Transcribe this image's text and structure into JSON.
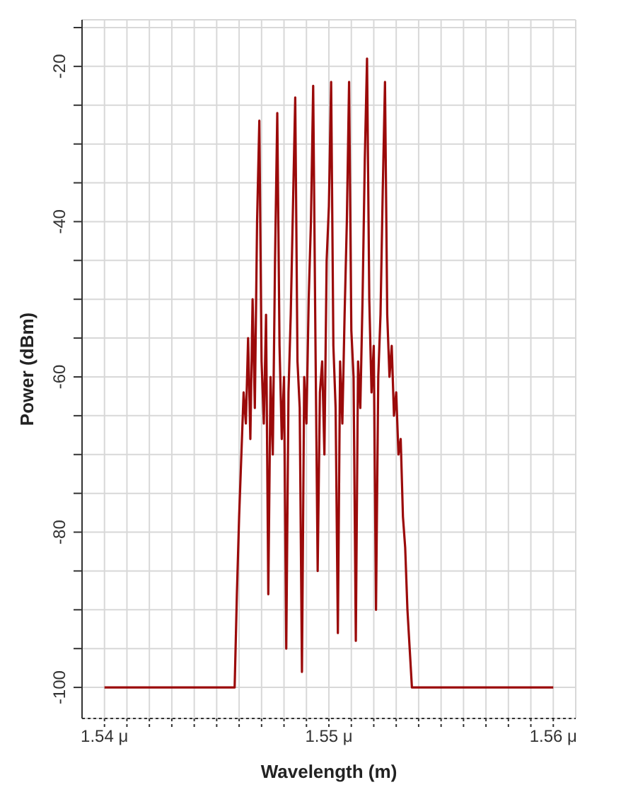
{
  "chart_data": {
    "type": "line",
    "xlabel": "Wavelength (m)",
    "ylabel": "Power (dBm)",
    "xlim": [
      1.539,
      1.561
    ],
    "ylim": [
      -104,
      -14
    ],
    "xticks": [
      {
        "value": 1.54,
        "label": "1.54 μ"
      },
      {
        "value": 1.541,
        "label": null
      },
      {
        "value": 1.542,
        "label": null
      },
      {
        "value": 1.543,
        "label": null
      },
      {
        "value": 1.544,
        "label": null
      },
      {
        "value": 1.545,
        "label": null
      },
      {
        "value": 1.546,
        "label": null
      },
      {
        "value": 1.547,
        "label": null
      },
      {
        "value": 1.548,
        "label": null
      },
      {
        "value": 1.549,
        "label": null
      },
      {
        "value": 1.55,
        "label": "1.55 μ"
      },
      {
        "value": 1.551,
        "label": null
      },
      {
        "value": 1.552,
        "label": null
      },
      {
        "value": 1.553,
        "label": null
      },
      {
        "value": 1.554,
        "label": null
      },
      {
        "value": 1.555,
        "label": null
      },
      {
        "value": 1.556,
        "label": null
      },
      {
        "value": 1.557,
        "label": null
      },
      {
        "value": 1.558,
        "label": null
      },
      {
        "value": 1.559,
        "label": null
      },
      {
        "value": 1.56,
        "label": "1.56 μ"
      }
    ],
    "yticks": [
      -100,
      {
        "value": -95,
        "label": null
      },
      {
        "value": -90,
        "label": null
      },
      {
        "value": -85,
        "label": null
      },
      -80,
      {
        "value": -75,
        "label": null
      },
      {
        "value": -70,
        "label": null
      },
      {
        "value": -65,
        "label": null
      },
      -60,
      {
        "value": -55,
        "label": null
      },
      {
        "value": -50,
        "label": null
      },
      {
        "value": -45,
        "label": null
      },
      -40,
      {
        "value": -35,
        "label": null
      },
      {
        "value": -30,
        "label": null
      },
      {
        "value": -25,
        "label": null
      },
      -20,
      {
        "value": -15,
        "label": null
      }
    ],
    "grid": true,
    "marker": "none",
    "line_style": "solid",
    "series": [
      {
        "color": "#9b0a0a",
        "x": [
          1.54,
          1.5458,
          1.5459,
          1.546,
          1.5461,
          1.5462,
          1.5463,
          1.5464,
          1.5465,
          1.5466,
          1.5467,
          1.5468,
          1.5469,
          1.547,
          1.5471,
          1.5472,
          1.5473,
          1.5474,
          1.5475,
          1.5476,
          1.5477,
          1.5478,
          1.5479,
          1.548,
          1.5481,
          1.5482,
          1.5483,
          1.5484,
          1.5485,
          1.5486,
          1.5487,
          1.5488,
          1.5489,
          1.549,
          1.5491,
          1.5492,
          1.5493,
          1.5494,
          1.5495,
          1.5496,
          1.5497,
          1.5498,
          1.5499,
          1.55,
          1.5501,
          1.5502,
          1.5503,
          1.5504,
          1.5505,
          1.5506,
          1.5507,
          1.5508,
          1.5509,
          1.551,
          1.5511,
          1.5512,
          1.5513,
          1.5514,
          1.5515,
          1.5516,
          1.5517,
          1.5518,
          1.5519,
          1.552,
          1.5521,
          1.5522,
          1.5523,
          1.5524,
          1.5525,
          1.5526,
          1.5527,
          1.5528,
          1.5529,
          1.553,
          1.5531,
          1.5532,
          1.5533,
          1.5534,
          1.5535,
          1.5536,
          1.5537,
          1.56
        ],
        "values": [
          -100,
          -100,
          -88,
          -78,
          -70,
          -62,
          -66,
          -55,
          -68,
          -50,
          -64,
          -40,
          -27,
          -58,
          -66,
          -52,
          -88,
          -60,
          -70,
          -45,
          -26,
          -56,
          -68,
          -60,
          -95,
          -62,
          -52,
          -38,
          -24,
          -58,
          -64,
          -98,
          -60,
          -66,
          -50,
          -40,
          -22.5,
          -55,
          -85,
          -62,
          -58,
          -70,
          -45,
          -38,
          -22,
          -56,
          -64,
          -93,
          -58,
          -66,
          -52,
          -40,
          -22,
          -54,
          -60,
          -94,
          -58,
          -64,
          -50,
          -32,
          -19,
          -50,
          -62,
          -56,
          -90,
          -60,
          -52,
          -36,
          -22,
          -52,
          -60,
          -56,
          -65,
          -62,
          -70,
          -68,
          -78,
          -82,
          -90,
          -95,
          -100,
          -100
        ]
      }
    ]
  }
}
